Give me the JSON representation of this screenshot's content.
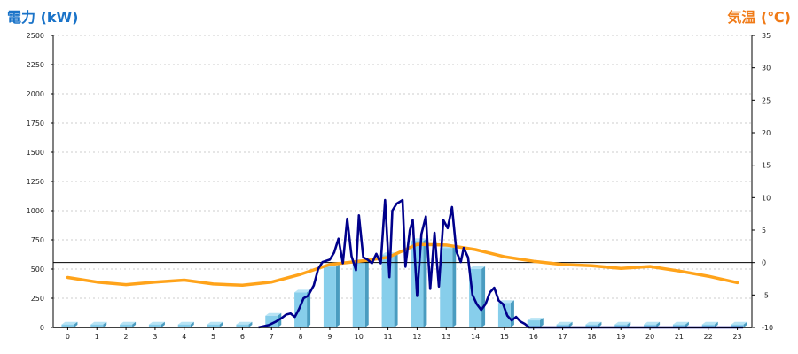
{
  "header": {
    "left_axis_title": "電力 (kW)",
    "right_axis_title": "気温 (℃)"
  },
  "colors": {
    "bar_front": "#87ceeb",
    "bar_side": "#4a9cc0",
    "bar_top": "#b8e4f5",
    "power_line": "#00008b",
    "temp_line": "#ffa31a",
    "grid": "#bdbdbd",
    "left_title": "#1a73c8",
    "right_title": "#f07a16"
  },
  "chart_data": {
    "type": "bar",
    "xlabel": "",
    "ylabel": "電力 (kW)",
    "ylabel_right": "気温 (℃)",
    "categories": [
      "0",
      "1",
      "2",
      "3",
      "4",
      "5",
      "6",
      "7",
      "8",
      "9",
      "10",
      "11",
      "12",
      "13",
      "14",
      "15",
      "16",
      "17",
      "18",
      "19",
      "20",
      "21",
      "22",
      "23"
    ],
    "ylim": [
      0,
      2500
    ],
    "y_ticks": [
      0,
      250,
      500,
      750,
      1000,
      1250,
      1500,
      1750,
      2000,
      2250,
      2500
    ],
    "y2lim": [
      -10,
      35
    ],
    "y2_ticks": [
      -10,
      -5,
      0,
      5,
      10,
      15,
      20,
      25,
      30,
      35
    ],
    "grid": true,
    "reference_line_right": 0,
    "series": [
      {
        "kind": "bar",
        "axis": "left",
        "values": [
          25,
          25,
          25,
          25,
          25,
          25,
          25,
          100,
          300,
          520,
          560,
          620,
          740,
          680,
          500,
          210,
          60,
          25,
          25,
          25,
          25,
          25,
          25,
          25
        ]
      },
      {
        "kind": "line",
        "axis": "left",
        "x": [
          6.55,
          6.9,
          7.15,
          7.35,
          7.5,
          7.65,
          7.8,
          7.95,
          8.1,
          8.25,
          8.45,
          8.6,
          8.75,
          9.0,
          9.15,
          9.3,
          9.45,
          9.6,
          9.75,
          9.9,
          10.0,
          10.15,
          10.3,
          10.45,
          10.6,
          10.75,
          10.9,
          11.05,
          11.15,
          11.3,
          11.5,
          11.6,
          11.75,
          11.85,
          12.0,
          12.15,
          12.3,
          12.45,
          12.6,
          12.75,
          12.9,
          13.05,
          13.2,
          13.35,
          13.5,
          13.6,
          13.75,
          13.9,
          14.05,
          14.2,
          14.35,
          14.5,
          14.65,
          14.8,
          14.95,
          15.1,
          15.25,
          15.4,
          15.55,
          15.7,
          15.85,
          16.0,
          16.15,
          16.35,
          16.6,
          17.0,
          23.2
        ],
        "values": [
          0,
          20,
          50,
          80,
          110,
          120,
          90,
          160,
          250,
          270,
          360,
          500,
          560,
          580,
          640,
          760,
          550,
          930,
          610,
          490,
          960,
          600,
          580,
          550,
          630,
          550,
          1090,
          430,
          1000,
          1060,
          1090,
          520,
          830,
          920,
          270,
          800,
          950,
          330,
          810,
          350,
          920,
          850,
          1030,
          650,
          560,
          680,
          600,
          280,
          200,
          150,
          200,
          300,
          340,
          230,
          200,
          100,
          60,
          90,
          50,
          30,
          0,
          0,
          0,
          0,
          0,
          0,
          0
        ]
      },
      {
        "kind": "line",
        "axis": "right",
        "x": [
          0,
          1,
          2,
          3,
          4,
          5,
          6,
          7,
          8,
          9,
          10,
          11,
          12,
          13,
          14,
          15,
          16,
          17,
          18,
          19,
          20,
          21,
          22,
          23
        ],
        "values": [
          -2.3,
          -3.0,
          -3.4,
          -3.0,
          -2.7,
          -3.3,
          -3.5,
          -3.0,
          -1.8,
          -0.3,
          0.2,
          0.8,
          2.8,
          2.7,
          2.0,
          0.9,
          0.2,
          -0.3,
          -0.5,
          -0.9,
          -0.6,
          -1.3,
          -2.1,
          -3.1
        ]
      }
    ]
  }
}
